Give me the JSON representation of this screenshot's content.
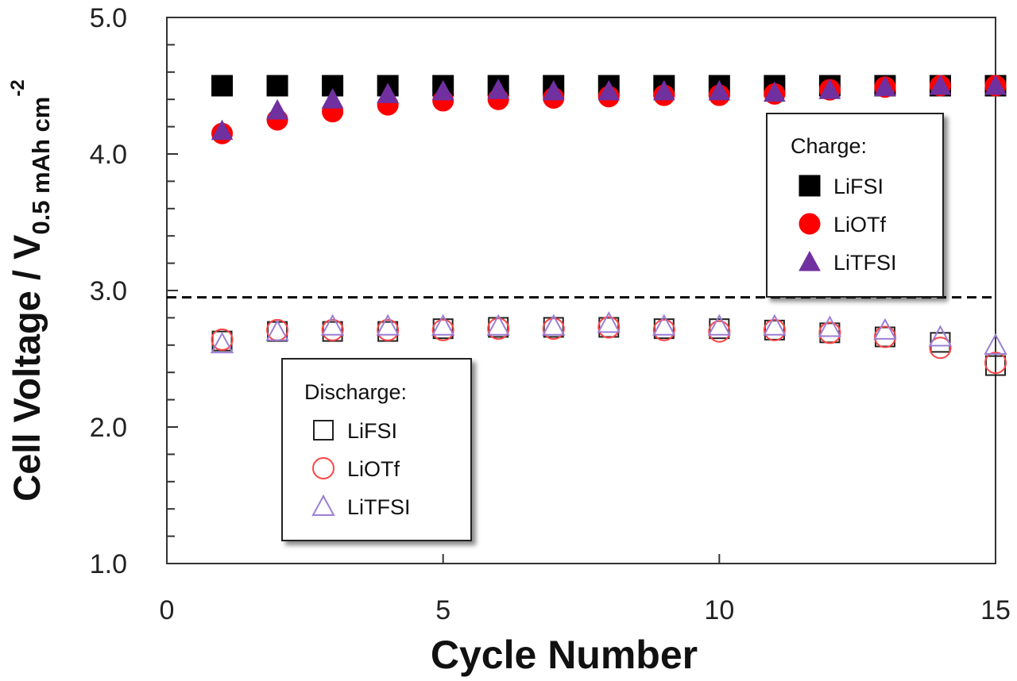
{
  "chart_data": {
    "type": "scatter",
    "title": "",
    "xlabel": "Cycle Number",
    "ylabel": {
      "main": "Cell Voltage / V",
      "subscript": "0.5 mAh cm",
      "superscript": "-2"
    },
    "xlim": [
      0,
      15
    ],
    "ylim": [
      1.0,
      5.0
    ],
    "x_ticks": [
      0,
      5,
      10,
      15
    ],
    "x_tick_labels": [
      "0",
      "5",
      "10",
      "15"
    ],
    "y_ticks": [
      1.0,
      2.0,
      3.0,
      4.0,
      5.0
    ],
    "y_tick_labels": [
      "1.0",
      "2.0",
      "3.0",
      "4.0",
      "5.0"
    ],
    "reference_line": {
      "y": 2.95,
      "style": "dashed"
    },
    "x": [
      1,
      2,
      3,
      4,
      5,
      6,
      7,
      8,
      9,
      10,
      11,
      12,
      13,
      14,
      15
    ],
    "series": [
      {
        "name": "LiFSI",
        "group": "Charge",
        "marker": "square",
        "filled": true,
        "color": "#000000",
        "values": [
          4.5,
          4.5,
          4.5,
          4.5,
          4.5,
          4.5,
          4.5,
          4.5,
          4.5,
          4.5,
          4.5,
          4.5,
          4.5,
          4.5,
          4.5
        ]
      },
      {
        "name": "LiOTf",
        "group": "Charge",
        "marker": "circle",
        "filled": true,
        "color": "#ff0000",
        "values": [
          4.15,
          4.25,
          4.31,
          4.36,
          4.39,
          4.4,
          4.41,
          4.42,
          4.43,
          4.43,
          4.44,
          4.47,
          4.49,
          4.5,
          4.5
        ]
      },
      {
        "name": "LiTFSI",
        "group": "Charge",
        "marker": "triangle",
        "filled": true,
        "color": "#7030a0",
        "values": [
          4.17,
          4.32,
          4.4,
          4.44,
          4.46,
          4.47,
          4.46,
          4.46,
          4.46,
          4.46,
          4.45,
          4.47,
          4.49,
          4.5,
          4.5
        ]
      },
      {
        "name": "LiFSI",
        "group": "Discharge",
        "marker": "square",
        "filled": false,
        "color": "#222222",
        "values": [
          2.63,
          2.7,
          2.7,
          2.7,
          2.72,
          2.73,
          2.73,
          2.73,
          2.72,
          2.72,
          2.71,
          2.69,
          2.66,
          2.62,
          2.45
        ]
      },
      {
        "name": "LiOTf",
        "group": "Discharge",
        "marker": "circle",
        "filled": false,
        "color": "#ff4444",
        "values": [
          2.64,
          2.71,
          2.71,
          2.71,
          2.71,
          2.72,
          2.72,
          2.73,
          2.71,
          2.7,
          2.71,
          2.69,
          2.66,
          2.58,
          2.47
        ]
      },
      {
        "name": "LiTFSI",
        "group": "Discharge",
        "marker": "triangle",
        "filled": false,
        "color": "#9b7fd4",
        "values": [
          2.61,
          2.7,
          2.74,
          2.74,
          2.74,
          2.74,
          2.74,
          2.76,
          2.74,
          2.74,
          2.74,
          2.73,
          2.71,
          2.66,
          2.6
        ]
      }
    ],
    "legends": [
      {
        "title": "Charge:",
        "position": "right",
        "entries": [
          "LiFSI",
          "LiOTf",
          "LiTFSI"
        ]
      },
      {
        "title": "Discharge:",
        "position": "bottom-left",
        "entries": [
          "LiFSI",
          "LiOTf",
          "LiTFSI"
        ]
      }
    ]
  }
}
